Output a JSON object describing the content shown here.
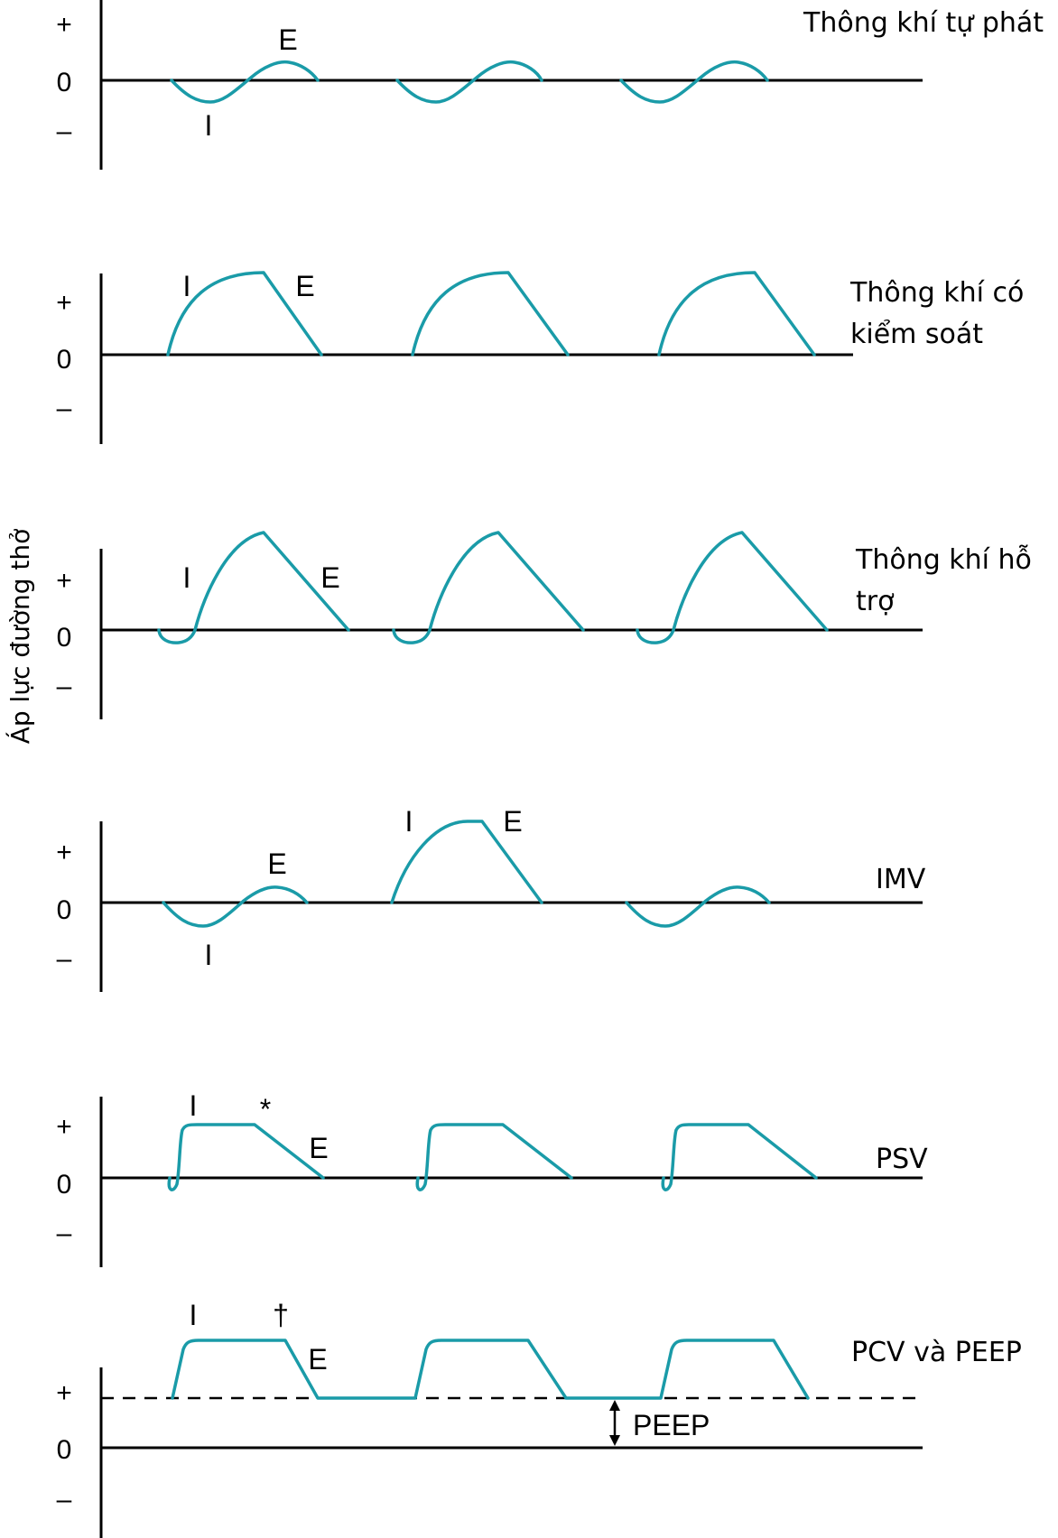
{
  "y_axis_label": "Áp lực đường thở",
  "tick_labels": {
    "plus": "+",
    "zero": "0",
    "minus": "–"
  },
  "panels": [
    {
      "mode": "Thông khí tự phát",
      "marks": {
        "inspiration": "I",
        "expiration": "E"
      }
    },
    {
      "mode_lines": [
        "Thông khí có",
        "kiểm soát"
      ],
      "marks": {
        "inspiration": "I",
        "expiration": "E"
      }
    },
    {
      "mode_lines": [
        "Thông khí hỗ",
        "trợ"
      ],
      "marks": {
        "inspiration": "I",
        "expiration": "E"
      }
    },
    {
      "mode": "IMV",
      "marks": {
        "inspiration": "I",
        "expiration": "E",
        "mandatory_inspiration": "I",
        "mandatory_expiration": "E"
      }
    },
    {
      "mode": "PSV",
      "marks": {
        "inspiration": "I",
        "expiration": "E",
        "flow_cycle": "*"
      }
    },
    {
      "mode": "PCV và PEEP",
      "marks": {
        "inspiration": "I",
        "expiration": "E",
        "time_cycle": "†"
      },
      "peep_label": "PEEP"
    }
  ],
  "colors": {
    "waveform": "#1a9ba8",
    "axes": "#000000"
  }
}
